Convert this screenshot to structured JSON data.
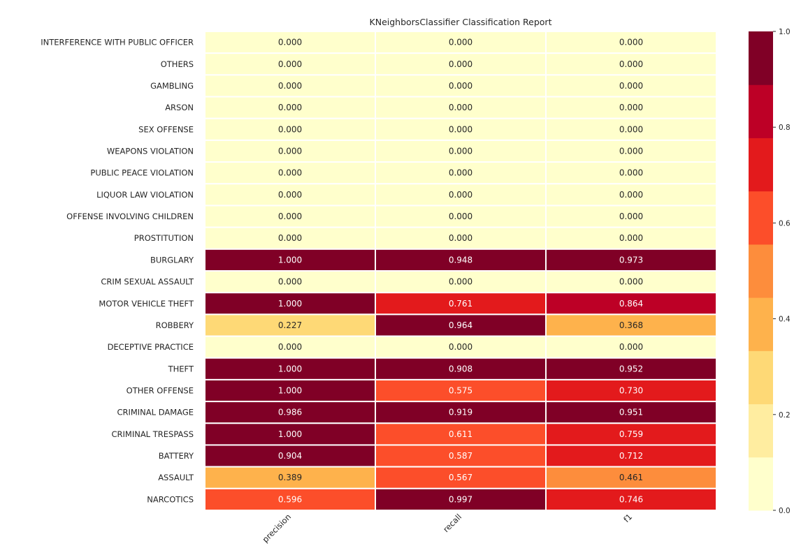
{
  "chart_data": {
    "type": "heatmap",
    "title": "KNeighborsClassifier Classification Report",
    "columns": [
      "precision",
      "recall",
      "f1"
    ],
    "rows": [
      {
        "label": "INTERFERENCE WITH PUBLIC OFFICER",
        "values": [
          0.0,
          0.0,
          0.0
        ],
        "display": [
          "0.000",
          "0.000",
          "0.000"
        ]
      },
      {
        "label": "OTHERS",
        "values": [
          0.0,
          0.0,
          0.0
        ],
        "display": [
          "0.000",
          "0.000",
          "0.000"
        ]
      },
      {
        "label": "GAMBLING",
        "values": [
          0.0,
          0.0,
          0.0
        ],
        "display": [
          "0.000",
          "0.000",
          "0.000"
        ]
      },
      {
        "label": "ARSON",
        "values": [
          0.0,
          0.0,
          0.0
        ],
        "display": [
          "0.000",
          "0.000",
          "0.000"
        ]
      },
      {
        "label": "SEX OFFENSE",
        "values": [
          0.0,
          0.0,
          0.0
        ],
        "display": [
          "0.000",
          "0.000",
          "0.000"
        ]
      },
      {
        "label": "WEAPONS VIOLATION",
        "values": [
          0.0,
          0.0,
          0.0
        ],
        "display": [
          "0.000",
          "0.000",
          "0.000"
        ]
      },
      {
        "label": "PUBLIC PEACE VIOLATION",
        "values": [
          0.0,
          0.0,
          0.0
        ],
        "display": [
          "0.000",
          "0.000",
          "0.000"
        ]
      },
      {
        "label": "LIQUOR LAW VIOLATION",
        "values": [
          0.0,
          0.0,
          0.0
        ],
        "display": [
          "0.000",
          "0.000",
          "0.000"
        ]
      },
      {
        "label": "OFFENSE INVOLVING CHILDREN",
        "values": [
          0.0,
          0.0,
          0.0
        ],
        "display": [
          "0.000",
          "0.000",
          "0.000"
        ]
      },
      {
        "label": "PROSTITUTION",
        "values": [
          0.0,
          0.0,
          0.0
        ],
        "display": [
          "0.000",
          "0.000",
          "0.000"
        ]
      },
      {
        "label": "BURGLARY",
        "values": [
          1.0,
          0.948,
          0.973
        ],
        "display": [
          "1.000",
          "0.948",
          "0.973"
        ]
      },
      {
        "label": "CRIM SEXUAL ASSAULT",
        "values": [
          0.0,
          0.0,
          0.0
        ],
        "display": [
          "0.000",
          "0.000",
          "0.000"
        ]
      },
      {
        "label": "MOTOR VEHICLE THEFT",
        "values": [
          1.0,
          0.761,
          0.864
        ],
        "display": [
          "1.000",
          "0.761",
          "0.864"
        ]
      },
      {
        "label": "ROBBERY",
        "values": [
          0.227,
          0.964,
          0.368
        ],
        "display": [
          "0.227",
          "0.964",
          "0.368"
        ]
      },
      {
        "label": "DECEPTIVE PRACTICE",
        "values": [
          0.0,
          0.0,
          0.0
        ],
        "display": [
          "0.000",
          "0.000",
          "0.000"
        ]
      },
      {
        "label": "THEFT",
        "values": [
          1.0,
          0.908,
          0.952
        ],
        "display": [
          "1.000",
          "0.908",
          "0.952"
        ]
      },
      {
        "label": "OTHER OFFENSE",
        "values": [
          1.0,
          0.575,
          0.73
        ],
        "display": [
          "1.000",
          "0.575",
          "0.730"
        ]
      },
      {
        "label": "CRIMINAL DAMAGE",
        "values": [
          0.986,
          0.919,
          0.951
        ],
        "display": [
          "0.986",
          "0.919",
          "0.951"
        ]
      },
      {
        "label": "CRIMINAL TRESPASS",
        "values": [
          1.0,
          0.611,
          0.759
        ],
        "display": [
          "1.000",
          "0.611",
          "0.759"
        ]
      },
      {
        "label": "BATTERY",
        "values": [
          0.904,
          0.587,
          0.712
        ],
        "display": [
          "0.904",
          "0.587",
          "0.712"
        ]
      },
      {
        "label": "ASSAULT",
        "values": [
          0.389,
          0.567,
          0.461
        ],
        "display": [
          "0.389",
          "0.567",
          "0.461"
        ]
      },
      {
        "label": "NARCOTICS",
        "values": [
          0.596,
          0.997,
          0.746
        ],
        "display": [
          "0.596",
          "0.997",
          "0.746"
        ]
      }
    ],
    "colorbar": {
      "range": [
        0.0,
        1.0
      ],
      "ticks": [
        "0.0",
        "0.2",
        "0.4",
        "0.6",
        "0.8",
        "1.0"
      ],
      "colors": [
        "#ffffcc",
        "#ffeda0",
        "#fed976",
        "#feb24c",
        "#fd8d3c",
        "#fc4e2a",
        "#e31a1c",
        "#bd0026",
        "#800026"
      ]
    },
    "grid": false
  }
}
